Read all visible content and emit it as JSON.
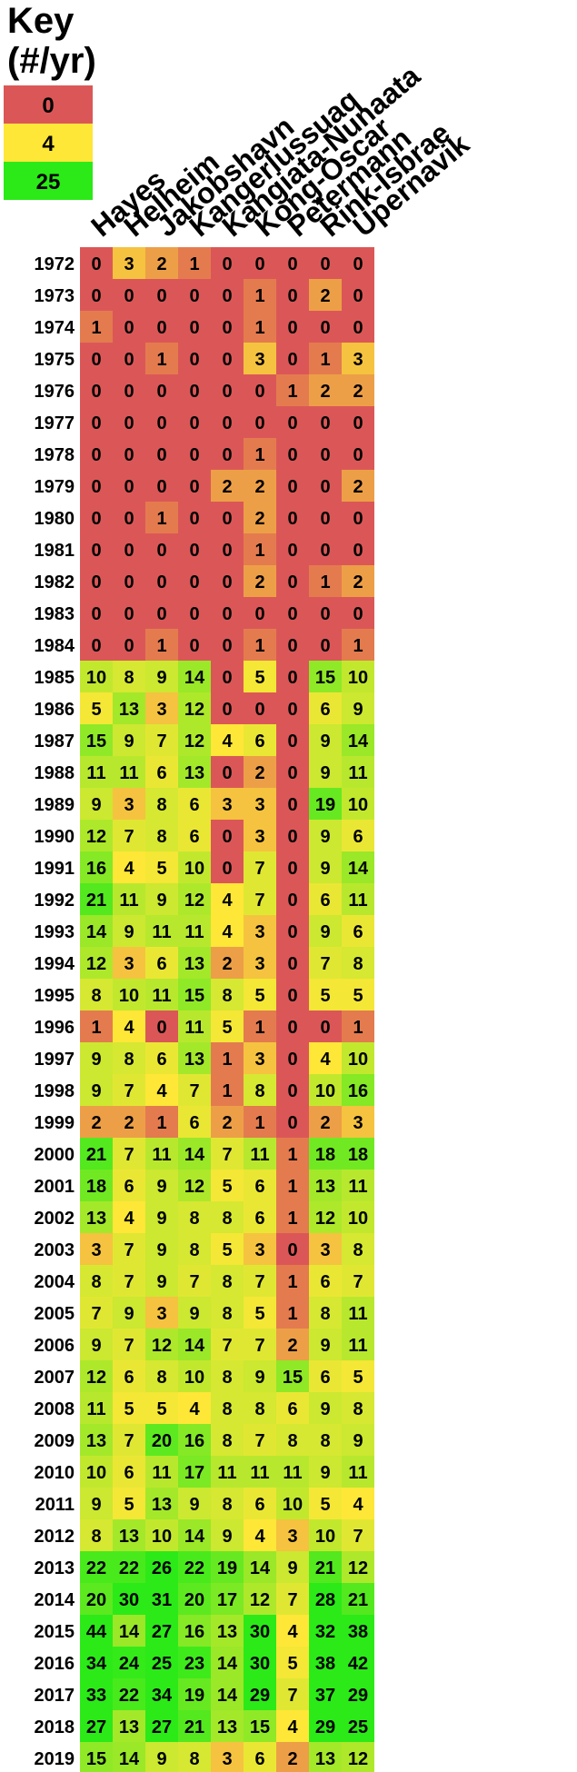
{
  "key": {
    "title_line1": "Key",
    "title_line2": "(#/yr)",
    "entries": [
      {
        "value": "0",
        "color": "#db5757"
      },
      {
        "value": "4",
        "color": "#fee737"
      },
      {
        "value": "25",
        "color": "#2bea18"
      }
    ]
  },
  "chart_data": {
    "type": "heatmap",
    "title": "",
    "unit": "#/yr",
    "columns": [
      "Hayes",
      "Helheim",
      "Jakobshavn",
      "Kangerlussuaq",
      "Kangiata-Nunaata",
      "Kong-Oscar",
      "Petermann",
      "Rink-Isbrae",
      "Upernavik"
    ],
    "rows": [
      "1972",
      "1973",
      "1974",
      "1975",
      "1976",
      "1977",
      "1978",
      "1979",
      "1980",
      "1981",
      "1982",
      "1983",
      "1984",
      "1985",
      "1986",
      "1987",
      "1988",
      "1989",
      "1990",
      "1991",
      "1992",
      "1993",
      "1994",
      "1995",
      "1996",
      "1997",
      "1998",
      "1999",
      "2000",
      "2001",
      "2002",
      "2003",
      "2004",
      "2005",
      "2006",
      "2007",
      "2008",
      "2009",
      "2010",
      "2011",
      "2012",
      "2013",
      "2014",
      "2015",
      "2016",
      "2017",
      "2018",
      "2019"
    ],
    "values": [
      [
        0,
        3,
        2,
        1,
        0,
        0,
        0,
        0,
        0
      ],
      [
        0,
        0,
        0,
        0,
        0,
        1,
        0,
        2,
        0
      ],
      [
        1,
        0,
        0,
        0,
        0,
        1,
        0,
        0,
        0
      ],
      [
        0,
        0,
        1,
        0,
        0,
        3,
        0,
        1,
        3
      ],
      [
        0,
        0,
        0,
        0,
        0,
        0,
        1,
        2,
        2
      ],
      [
        0,
        0,
        0,
        0,
        0,
        0,
        0,
        0,
        0
      ],
      [
        0,
        0,
        0,
        0,
        0,
        1,
        0,
        0,
        0
      ],
      [
        0,
        0,
        0,
        0,
        2,
        2,
        0,
        0,
        2
      ],
      [
        0,
        0,
        1,
        0,
        0,
        2,
        0,
        0,
        0
      ],
      [
        0,
        0,
        0,
        0,
        0,
        1,
        0,
        0,
        0
      ],
      [
        0,
        0,
        0,
        0,
        0,
        2,
        0,
        1,
        2
      ],
      [
        0,
        0,
        0,
        0,
        0,
        0,
        0,
        0,
        0
      ],
      [
        0,
        0,
        1,
        0,
        0,
        1,
        0,
        0,
        1
      ],
      [
        10,
        8,
        9,
        14,
        0,
        5,
        0,
        15,
        10
      ],
      [
        5,
        13,
        3,
        12,
        0,
        0,
        0,
        6,
        9
      ],
      [
        15,
        9,
        7,
        12,
        4,
        6,
        0,
        9,
        14
      ],
      [
        11,
        11,
        6,
        13,
        0,
        2,
        0,
        9,
        11
      ],
      [
        9,
        3,
        8,
        6,
        3,
        3,
        0,
        19,
        10
      ],
      [
        12,
        7,
        8,
        6,
        0,
        3,
        0,
        9,
        6
      ],
      [
        16,
        4,
        5,
        10,
        0,
        7,
        0,
        9,
        14
      ],
      [
        21,
        11,
        9,
        12,
        4,
        7,
        0,
        6,
        11
      ],
      [
        14,
        9,
        11,
        11,
        4,
        3,
        0,
        9,
        6
      ],
      [
        12,
        3,
        6,
        13,
        2,
        3,
        0,
        7,
        8
      ],
      [
        8,
        10,
        11,
        15,
        8,
        5,
        0,
        5,
        5
      ],
      [
        1,
        4,
        0,
        11,
        5,
        1,
        0,
        0,
        1
      ],
      [
        9,
        8,
        6,
        13,
        1,
        3,
        0,
        4,
        10
      ],
      [
        9,
        7,
        4,
        7,
        1,
        8,
        0,
        10,
        16
      ],
      [
        2,
        2,
        1,
        6,
        2,
        1,
        0,
        2,
        3
      ],
      [
        21,
        7,
        11,
        14,
        7,
        11,
        1,
        18,
        18
      ],
      [
        18,
        6,
        9,
        12,
        5,
        6,
        1,
        13,
        11
      ],
      [
        13,
        4,
        9,
        8,
        8,
        6,
        1,
        12,
        10
      ],
      [
        3,
        7,
        9,
        8,
        5,
        3,
        0,
        3,
        8
      ],
      [
        8,
        7,
        9,
        7,
        8,
        7,
        1,
        6,
        7
      ],
      [
        7,
        9,
        3,
        9,
        8,
        5,
        1,
        8,
        11
      ],
      [
        9,
        7,
        12,
        14,
        7,
        7,
        2,
        9,
        11
      ],
      [
        12,
        6,
        8,
        10,
        8,
        9,
        15,
        6,
        5
      ],
      [
        11,
        5,
        5,
        4,
        8,
        8,
        6,
        9,
        8
      ],
      [
        13,
        7,
        20,
        16,
        8,
        7,
        8,
        8,
        9
      ],
      [
        10,
        6,
        11,
        17,
        11,
        11,
        11,
        9,
        11
      ],
      [
        9,
        5,
        13,
        9,
        8,
        6,
        10,
        5,
        4
      ],
      [
        8,
        13,
        10,
        14,
        9,
        4,
        3,
        10,
        7
      ],
      [
        22,
        22,
        26,
        22,
        19,
        14,
        9,
        21,
        12
      ],
      [
        20,
        30,
        31,
        20,
        17,
        12,
        7,
        28,
        21
      ],
      [
        44,
        14,
        27,
        16,
        13,
        30,
        4,
        32,
        38
      ],
      [
        34,
        24,
        25,
        23,
        14,
        30,
        5,
        38,
        42
      ],
      [
        33,
        22,
        34,
        19,
        14,
        29,
        7,
        37,
        29
      ],
      [
        27,
        13,
        27,
        21,
        13,
        15,
        4,
        29,
        25
      ],
      [
        15,
        14,
        9,
        8,
        3,
        6,
        2,
        13,
        12
      ]
    ],
    "color_scale": {
      "min": 0,
      "mid": 4,
      "max": 25,
      "min_color": "#db5757",
      "mid_color": "#fee737",
      "max_color": "#2bea18"
    },
    "grid": false,
    "legend_position": "top-left"
  }
}
